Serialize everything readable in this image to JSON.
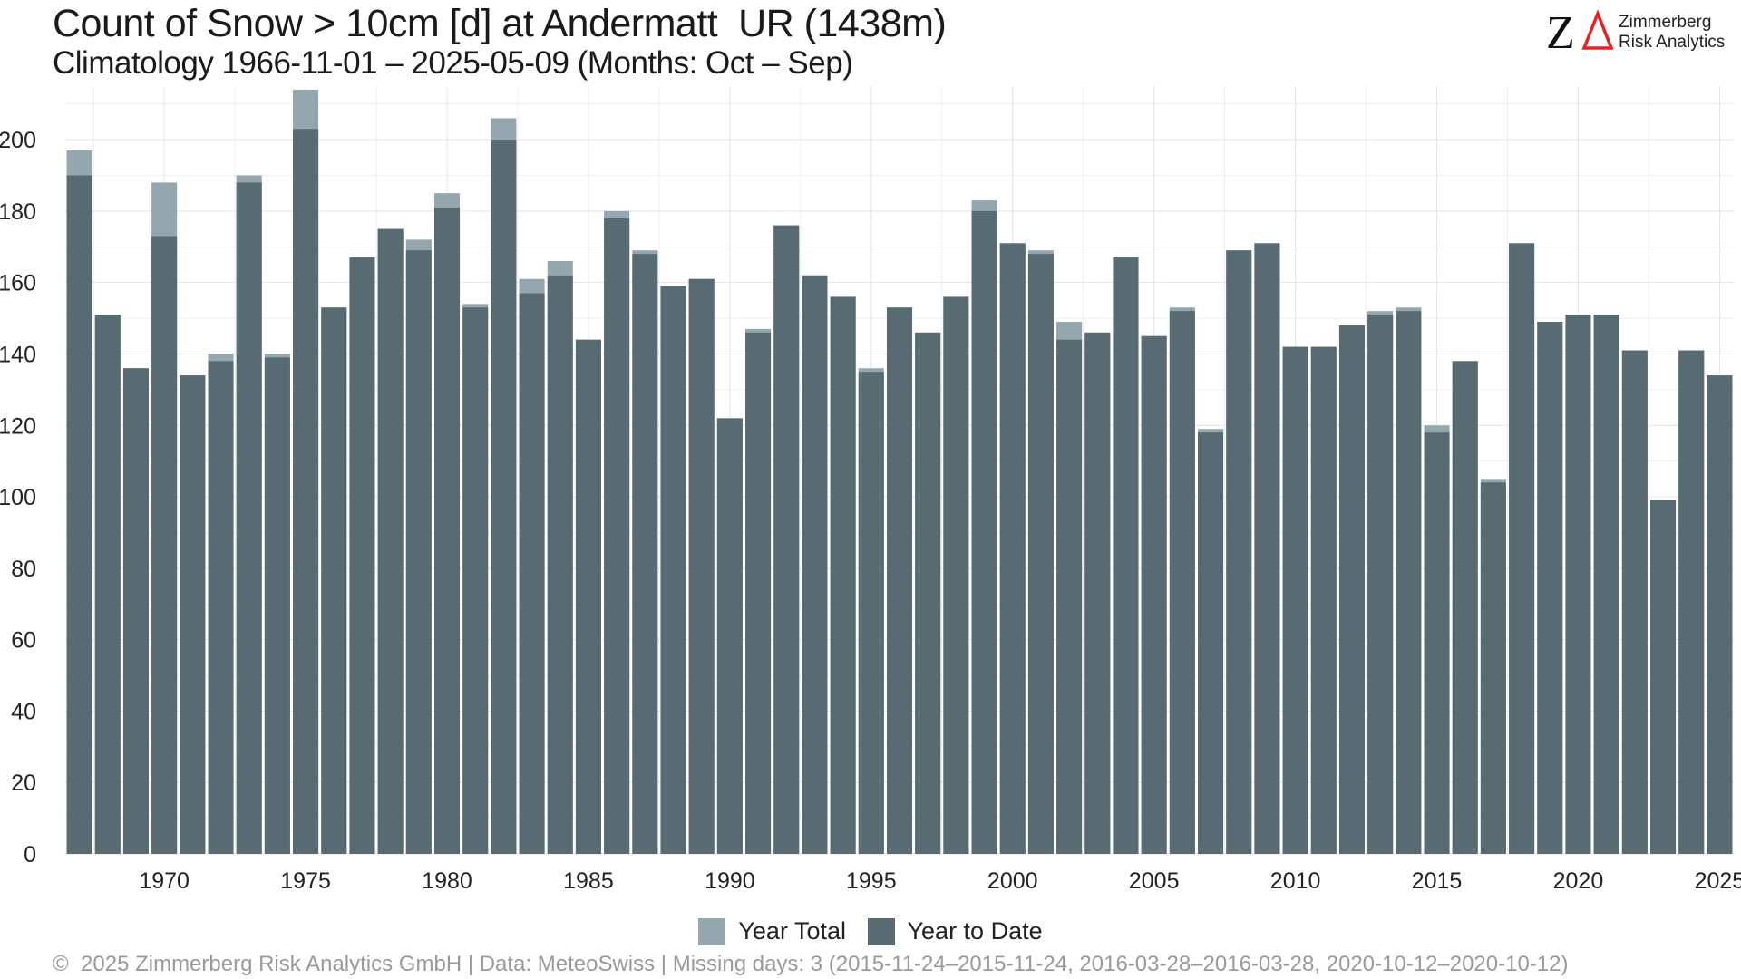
{
  "colors": {
    "year_total": "#95a7ae",
    "year_to_date": "#596b72",
    "grid": "#e4e4e4",
    "axis_text": "#222222",
    "logo_red": "#e8231f"
  },
  "logo": {
    "icon": "za-delta-logo",
    "line1": "Zimmerberg",
    "line2": "Risk Analytics"
  },
  "legend": {
    "total_label": "Year Total",
    "ytd_label": "Year to Date"
  },
  "footer": "©  2025 Zimmerberg Risk Analytics GmbH | Data: MeteoSwiss | Missing days: 3 (2015-11-24–2015-11-24, 2016-03-28–2016-03-28, 2020-10-12–2020-10-12)",
  "chart_data": {
    "type": "bar",
    "title": "Count of Snow > 10cm [d] at Andermatt  UR (1438m)",
    "subtitle": "Climatology 1966-11-01 – 2025-05-09 (Months: Oct – Sep)",
    "xlabel": "",
    "ylabel": "",
    "ylim": [
      0,
      215
    ],
    "yticks": [
      0,
      20,
      40,
      60,
      80,
      100,
      120,
      140,
      160,
      180,
      200
    ],
    "xticks": [
      1970,
      1975,
      1980,
      1985,
      1990,
      1995,
      2000,
      2005,
      2010,
      2015,
      2020,
      2025
    ],
    "grid": true,
    "legend_position": "bottom",
    "categories": [
      1967,
      1968,
      1969,
      1970,
      1971,
      1972,
      1973,
      1974,
      1975,
      1976,
      1977,
      1978,
      1979,
      1980,
      1981,
      1982,
      1983,
      1984,
      1985,
      1986,
      1987,
      1988,
      1989,
      1990,
      1991,
      1992,
      1993,
      1994,
      1995,
      1996,
      1997,
      1998,
      1999,
      2000,
      2001,
      2002,
      2003,
      2004,
      2005,
      2006,
      2007,
      2008,
      2009,
      2010,
      2011,
      2012,
      2013,
      2014,
      2015,
      2016,
      2017,
      2018,
      2019,
      2020,
      2021,
      2022,
      2023,
      2024,
      2025
    ],
    "series": [
      {
        "name": "Year Total",
        "values": [
          197,
          151,
          136,
          188,
          134,
          140,
          190,
          140,
          214,
          153,
          167,
          175,
          172,
          185,
          154,
          206,
          161,
          166,
          144,
          180,
          169,
          159,
          161,
          122,
          147,
          176,
          162,
          156,
          136,
          153,
          146,
          156,
          183,
          171,
          169,
          149,
          146,
          167,
          145,
          153,
          119,
          169,
          171,
          142,
          142,
          148,
          152,
          153,
          120,
          138,
          105,
          171,
          149,
          151,
          151,
          141,
          99,
          141,
          134
        ]
      },
      {
        "name": "Year to Date",
        "values": [
          190,
          151,
          136,
          173,
          134,
          138,
          188,
          139,
          203,
          153,
          167,
          175,
          169,
          181,
          153,
          200,
          157,
          162,
          144,
          178,
          168,
          159,
          161,
          122,
          146,
          176,
          162,
          156,
          135,
          153,
          146,
          156,
          180,
          171,
          168,
          144,
          146,
          167,
          145,
          152,
          118,
          169,
          171,
          142,
          142,
          148,
          151,
          152,
          118,
          138,
          104,
          171,
          149,
          151,
          151,
          141,
          99,
          141,
          134
        ]
      }
    ]
  }
}
